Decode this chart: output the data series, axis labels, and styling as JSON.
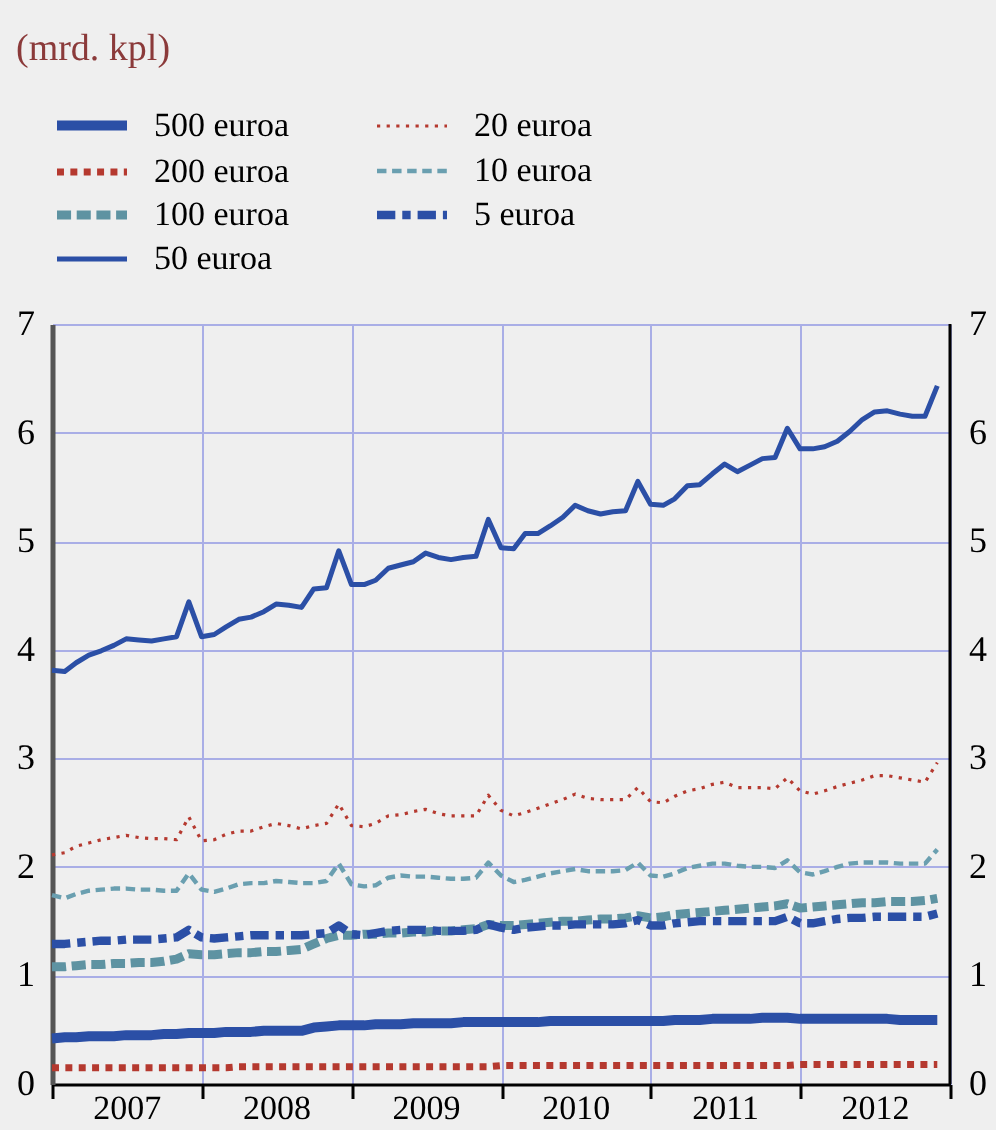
{
  "chart_data": {
    "type": "line",
    "title": "(mrd. kpl)",
    "x": [
      "2007-01",
      "2007-02",
      "2007-03",
      "2007-04",
      "2007-05",
      "2007-06",
      "2007-07",
      "2007-08",
      "2007-09",
      "2007-10",
      "2007-11",
      "2007-12",
      "2008-01",
      "2008-02",
      "2008-03",
      "2008-04",
      "2008-05",
      "2008-06",
      "2008-07",
      "2008-08",
      "2008-09",
      "2008-10",
      "2008-11",
      "2008-12",
      "2009-01",
      "2009-02",
      "2009-03",
      "2009-04",
      "2009-05",
      "2009-06",
      "2009-07",
      "2009-08",
      "2009-09",
      "2009-10",
      "2009-11",
      "2009-12",
      "2010-01",
      "2010-02",
      "2010-03",
      "2010-04",
      "2010-05",
      "2010-06",
      "2010-07",
      "2010-08",
      "2010-09",
      "2010-10",
      "2010-11",
      "2010-12",
      "2011-01",
      "2011-02",
      "2011-03",
      "2011-04",
      "2011-05",
      "2011-06",
      "2011-07",
      "2011-08",
      "2011-09",
      "2011-10",
      "2011-11",
      "2011-12",
      "2012-01",
      "2012-02",
      "2012-03",
      "2012-04",
      "2012-05",
      "2012-06",
      "2012-07",
      "2012-08",
      "2012-09",
      "2012-10",
      "2012-11",
      "2012-12"
    ],
    "xlim": [
      "2007-01",
      "2013-01"
    ],
    "xticks": [
      {
        "value": "2007-01",
        "label": null
      },
      {
        "value": "2007-07",
        "label": "2007"
      },
      {
        "value": "2008-01",
        "label": null
      },
      {
        "value": "2008-07",
        "label": "2008"
      },
      {
        "value": "2009-01",
        "label": null
      },
      {
        "value": "2009-07",
        "label": "2009"
      },
      {
        "value": "2010-01",
        "label": null
      },
      {
        "value": "2010-07",
        "label": "2010"
      },
      {
        "value": "2011-01",
        "label": null
      },
      {
        "value": "2011-07",
        "label": "2011"
      },
      {
        "value": "2012-01",
        "label": null
      },
      {
        "value": "2012-07",
        "label": "2012"
      },
      {
        "value": "2013-01",
        "label": null
      }
    ],
    "ylim": [
      0,
      7
    ],
    "yticks": [
      0,
      1,
      2,
      3,
      4,
      5,
      6,
      7
    ],
    "y2lim": [
      0,
      7
    ],
    "y2ticks": [
      0,
      1,
      2,
      3,
      4,
      5,
      6,
      7
    ],
    "grid": true,
    "legend": "top left",
    "series": [
      {
        "name": "500 euroa",
        "color": "#2b4fa6",
        "line_style": "solid",
        "values": [
          0.42,
          0.43,
          0.43,
          0.44,
          0.44,
          0.44,
          0.45,
          0.45,
          0.45,
          0.46,
          0.46,
          0.47,
          0.47,
          0.47,
          0.48,
          0.48,
          0.48,
          0.49,
          0.49,
          0.49,
          0.49,
          0.52,
          0.53,
          0.54,
          0.54,
          0.54,
          0.55,
          0.55,
          0.55,
          0.56,
          0.56,
          0.56,
          0.56,
          0.57,
          0.57,
          0.57,
          0.57,
          0.57,
          0.57,
          0.57,
          0.58,
          0.58,
          0.58,
          0.58,
          0.58,
          0.58,
          0.58,
          0.58,
          0.58,
          0.58,
          0.59,
          0.59,
          0.59,
          0.6,
          0.6,
          0.6,
          0.6,
          0.61,
          0.61,
          0.61,
          0.6,
          0.6,
          0.6,
          0.6,
          0.6,
          0.6,
          0.6,
          0.6,
          0.59,
          0.59,
          0.59,
          0.59
        ]
      },
      {
        "name": "200 euroa",
        "color": "#b5392f",
        "line_style": "dotted",
        "values": [
          0.15,
          0.15,
          0.15,
          0.15,
          0.15,
          0.15,
          0.15,
          0.15,
          0.15,
          0.15,
          0.15,
          0.15,
          0.15,
          0.15,
          0.15,
          0.16,
          0.16,
          0.16,
          0.16,
          0.16,
          0.16,
          0.16,
          0.16,
          0.16,
          0.16,
          0.16,
          0.16,
          0.16,
          0.16,
          0.16,
          0.16,
          0.16,
          0.16,
          0.16,
          0.16,
          0.16,
          0.17,
          0.17,
          0.17,
          0.17,
          0.17,
          0.17,
          0.17,
          0.17,
          0.17,
          0.17,
          0.17,
          0.17,
          0.17,
          0.17,
          0.17,
          0.17,
          0.17,
          0.17,
          0.17,
          0.17,
          0.17,
          0.17,
          0.17,
          0.17,
          0.18,
          0.18,
          0.18,
          0.18,
          0.18,
          0.18,
          0.18,
          0.18,
          0.18,
          0.18,
          0.18,
          0.18
        ]
      },
      {
        "name": "100 euroa",
        "color": "#5e93a2",
        "line_style": "dashed",
        "values": [
          1.08,
          1.08,
          1.09,
          1.1,
          1.1,
          1.11,
          1.11,
          1.12,
          1.12,
          1.13,
          1.15,
          1.2,
          1.19,
          1.19,
          1.2,
          1.21,
          1.21,
          1.22,
          1.22,
          1.23,
          1.24,
          1.29,
          1.34,
          1.37,
          1.37,
          1.38,
          1.38,
          1.39,
          1.39,
          1.4,
          1.4,
          1.41,
          1.41,
          1.42,
          1.43,
          1.47,
          1.46,
          1.46,
          1.47,
          1.48,
          1.49,
          1.5,
          1.5,
          1.51,
          1.52,
          1.52,
          1.53,
          1.55,
          1.53,
          1.54,
          1.56,
          1.57,
          1.58,
          1.59,
          1.6,
          1.61,
          1.62,
          1.63,
          1.64,
          1.66,
          1.62,
          1.63,
          1.64,
          1.65,
          1.66,
          1.67,
          1.67,
          1.68,
          1.68,
          1.68,
          1.69,
          1.71
        ]
      },
      {
        "name": "50 euroa",
        "color": "#2b4fa6",
        "line_style": "solid",
        "values": [
          3.81,
          3.8,
          3.88,
          3.95,
          3.99,
          4.04,
          4.1,
          4.09,
          4.08,
          4.1,
          4.12,
          4.44,
          4.12,
          4.14,
          4.21,
          4.28,
          4.3,
          4.35,
          4.42,
          4.41,
          4.39,
          4.56,
          4.57,
          4.91,
          4.6,
          4.6,
          4.64,
          4.75,
          4.78,
          4.81,
          4.89,
          4.85,
          4.83,
          4.85,
          4.86,
          5.2,
          4.94,
          4.93,
          5.07,
          5.07,
          5.14,
          5.22,
          5.33,
          5.28,
          5.25,
          5.27,
          5.28,
          5.55,
          5.34,
          5.33,
          5.39,
          5.51,
          5.52,
          5.62,
          5.71,
          5.64,
          5.7,
          5.76,
          5.77,
          6.04,
          5.85,
          5.85,
          5.87,
          5.92,
          6.01,
          6.12,
          6.19,
          6.2,
          6.17,
          6.15,
          6.15,
          6.43
        ]
      },
      {
        "name": "20 euroa",
        "color": "#b5392f",
        "line_style": "dotted",
        "values": [
          2.11,
          2.13,
          2.19,
          2.22,
          2.25,
          2.27,
          2.29,
          2.27,
          2.26,
          2.26,
          2.25,
          2.46,
          2.24,
          2.25,
          2.3,
          2.33,
          2.33,
          2.37,
          2.4,
          2.38,
          2.35,
          2.38,
          2.4,
          2.58,
          2.38,
          2.37,
          2.4,
          2.47,
          2.48,
          2.51,
          2.53,
          2.49,
          2.47,
          2.47,
          2.47,
          2.66,
          2.52,
          2.47,
          2.5,
          2.54,
          2.58,
          2.62,
          2.67,
          2.63,
          2.62,
          2.62,
          2.62,
          2.73,
          2.6,
          2.59,
          2.65,
          2.7,
          2.72,
          2.76,
          2.78,
          2.73,
          2.73,
          2.73,
          2.72,
          2.82,
          2.7,
          2.67,
          2.7,
          2.74,
          2.77,
          2.8,
          2.84,
          2.84,
          2.82,
          2.8,
          2.78,
          2.96
        ]
      },
      {
        "name": "10 euroa",
        "color": "#6a9fb0",
        "line_style": "dashed",
        "values": [
          1.74,
          1.71,
          1.75,
          1.78,
          1.79,
          1.8,
          1.8,
          1.79,
          1.79,
          1.78,
          1.78,
          1.94,
          1.79,
          1.77,
          1.8,
          1.84,
          1.85,
          1.85,
          1.87,
          1.86,
          1.85,
          1.85,
          1.87,
          2.03,
          1.84,
          1.82,
          1.83,
          1.9,
          1.92,
          1.91,
          1.91,
          1.9,
          1.89,
          1.89,
          1.9,
          2.04,
          1.92,
          1.86,
          1.88,
          1.91,
          1.94,
          1.96,
          1.98,
          1.96,
          1.96,
          1.96,
          1.97,
          2.04,
          1.92,
          1.91,
          1.94,
          1.99,
          2.01,
          2.03,
          2.03,
          2.01,
          2.0,
          2.0,
          1.99,
          2.06,
          1.95,
          1.93,
          1.96,
          2.0,
          2.03,
          2.04,
          2.04,
          2.04,
          2.03,
          2.03,
          2.03,
          2.16
        ]
      },
      {
        "name": "5 euroa",
        "color": "#2b4fa6",
        "line_style": "dashdot",
        "values": [
          1.29,
          1.29,
          1.3,
          1.31,
          1.32,
          1.32,
          1.33,
          1.33,
          1.33,
          1.34,
          1.35,
          1.42,
          1.35,
          1.34,
          1.35,
          1.36,
          1.37,
          1.37,
          1.37,
          1.37,
          1.37,
          1.38,
          1.39,
          1.46,
          1.38,
          1.37,
          1.39,
          1.41,
          1.42,
          1.42,
          1.42,
          1.41,
          1.41,
          1.41,
          1.42,
          1.47,
          1.44,
          1.42,
          1.44,
          1.45,
          1.46,
          1.46,
          1.47,
          1.47,
          1.47,
          1.47,
          1.48,
          1.51,
          1.46,
          1.46,
          1.48,
          1.49,
          1.5,
          1.5,
          1.5,
          1.5,
          1.5,
          1.5,
          1.5,
          1.54,
          1.48,
          1.48,
          1.5,
          1.52,
          1.53,
          1.53,
          1.54,
          1.54,
          1.54,
          1.54,
          1.54,
          1.57
        ]
      }
    ]
  }
}
